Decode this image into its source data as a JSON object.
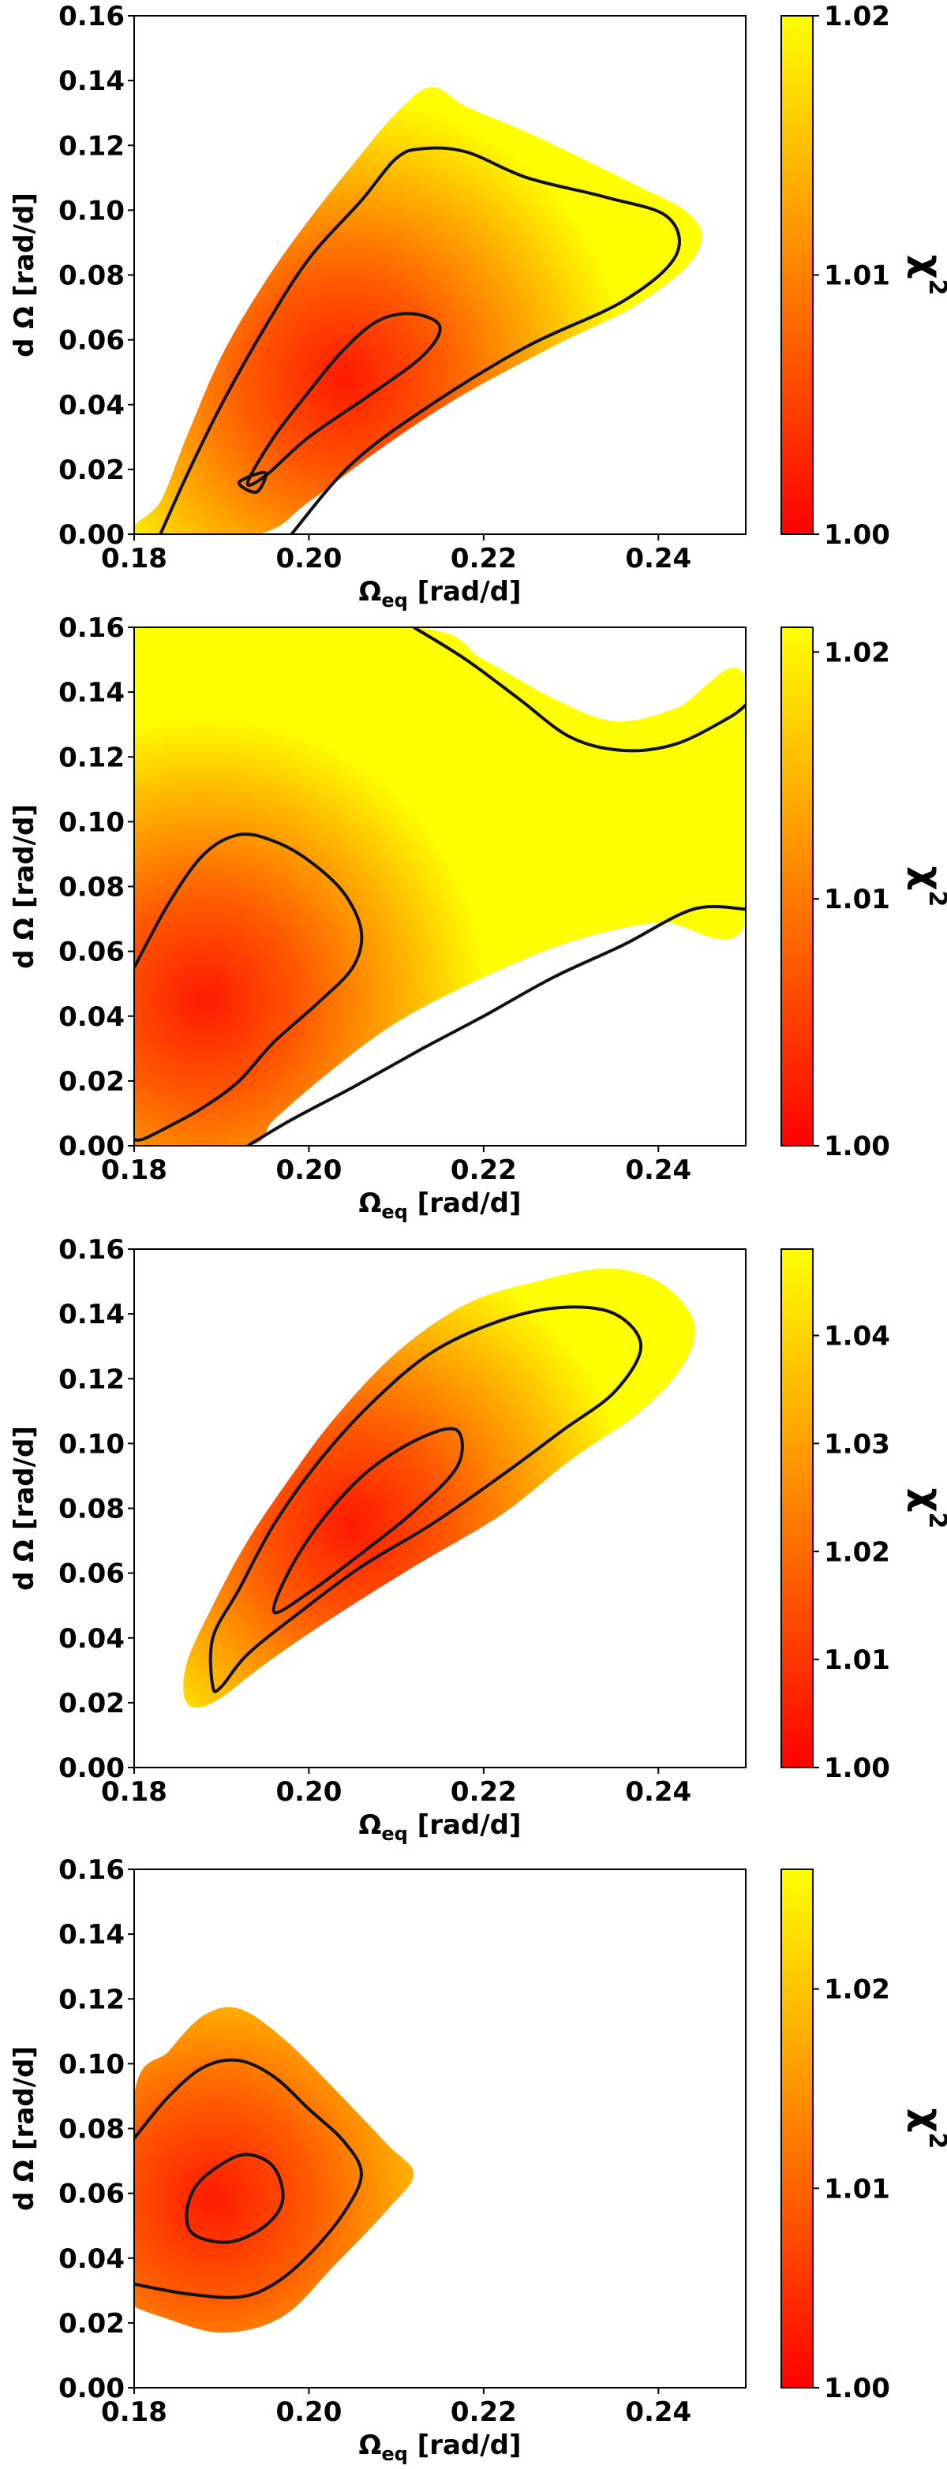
{
  "chart_data": [
    {
      "type": "contour",
      "title": "",
      "xlabel_main": "Ω",
      "xlabel_sub": "eq",
      "xlabel_unit": " [rad/d]",
      "ylabel": "d Ω  [rad/d]",
      "xlim": [
        0.18,
        0.25
      ],
      "ylim": [
        0.0,
        0.16
      ],
      "xticks": [
        "0.18",
        "0.20",
        "0.22",
        "0.24"
      ],
      "xtick_values": [
        0.18,
        0.2,
        0.22,
        0.24
      ],
      "yticks": [
        "0.00",
        "0.02",
        "0.04",
        "0.06",
        "0.08",
        "0.10",
        "0.12",
        "0.14",
        "0.16"
      ],
      "ytick_values": [
        0.0,
        0.02,
        0.04,
        0.06,
        0.08,
        0.1,
        0.12,
        0.14,
        0.16
      ],
      "colorbar": {
        "label_main": "χ",
        "label_sup": "2",
        "range": [
          1.0,
          1.02
        ],
        "ticks": [
          "1.00",
          "1.01",
          "1.02"
        ],
        "tick_values": [
          1.0,
          1.01,
          1.02
        ]
      },
      "minimum": [
        0.204,
        0.048
      ],
      "fill_region": [
        [
          0.18,
          0.0
        ],
        [
          0.183,
          0.01
        ],
        [
          0.186,
          0.03
        ],
        [
          0.19,
          0.055
        ],
        [
          0.195,
          0.078
        ],
        [
          0.2,
          0.097
        ],
        [
          0.205,
          0.114
        ],
        [
          0.21,
          0.13
        ],
        [
          0.214,
          0.138
        ],
        [
          0.218,
          0.132
        ],
        [
          0.225,
          0.124
        ],
        [
          0.232,
          0.115
        ],
        [
          0.238,
          0.107
        ],
        [
          0.243,
          0.1
        ],
        [
          0.245,
          0.092
        ],
        [
          0.243,
          0.082
        ],
        [
          0.237,
          0.07
        ],
        [
          0.228,
          0.058
        ],
        [
          0.217,
          0.042
        ],
        [
          0.208,
          0.026
        ],
        [
          0.2,
          0.01
        ],
        [
          0.194,
          0.0
        ]
      ],
      "contours": [
        [
          [
            0.183,
            0.0
          ],
          [
            0.186,
            0.018
          ],
          [
            0.19,
            0.04
          ],
          [
            0.195,
            0.064
          ],
          [
            0.2,
            0.085
          ],
          [
            0.206,
            0.103
          ],
          [
            0.21,
            0.116
          ],
          [
            0.213,
            0.119
          ],
          [
            0.218,
            0.118
          ],
          [
            0.225,
            0.11
          ],
          [
            0.234,
            0.104
          ],
          [
            0.241,
            0.098
          ],
          [
            0.242,
            0.086
          ],
          [
            0.236,
            0.072
          ],
          [
            0.225,
            0.058
          ],
          [
            0.214,
            0.04
          ],
          [
            0.205,
            0.022
          ],
          [
            0.198,
            0.0
          ]
        ],
        [
          [
            0.193,
            0.016
          ],
          [
            0.196,
            0.03
          ],
          [
            0.2,
            0.044
          ],
          [
            0.204,
            0.057
          ],
          [
            0.208,
            0.066
          ],
          [
            0.212,
            0.068
          ],
          [
            0.215,
            0.064
          ],
          [
            0.213,
            0.055
          ],
          [
            0.207,
            0.043
          ],
          [
            0.2,
            0.03
          ],
          [
            0.195,
            0.018
          ],
          [
            0.193,
            0.016
          ]
        ],
        [
          [
            0.192,
            0.016
          ],
          [
            0.194,
            0.013
          ],
          [
            0.195,
            0.019
          ],
          [
            0.192,
            0.016
          ]
        ]
      ]
    },
    {
      "type": "contour",
      "title": "",
      "xlabel_main": "Ω",
      "xlabel_sub": "eq",
      "xlabel_unit": " [rad/d]",
      "ylabel": "d Ω  [rad/d]",
      "xlim": [
        0.18,
        0.25
      ],
      "ylim": [
        0.0,
        0.16
      ],
      "xticks": [
        "0.18",
        "0.20",
        "0.22",
        "0.24"
      ],
      "xtick_values": [
        0.18,
        0.2,
        0.22,
        0.24
      ],
      "yticks": [
        "0.00",
        "0.02",
        "0.04",
        "0.06",
        "0.08",
        "0.10",
        "0.12",
        "0.14",
        "0.16"
      ],
      "ytick_values": [
        0.0,
        0.02,
        0.04,
        0.06,
        0.08,
        0.1,
        0.12,
        0.14,
        0.16
      ],
      "colorbar": {
        "label_main": "χ",
        "label_sup": "2",
        "range": [
          1.0,
          1.021
        ],
        "ticks": [
          "1.00",
          "1.01",
          "1.02"
        ],
        "tick_values": [
          1.0,
          1.01,
          1.02
        ]
      },
      "minimum": [
        0.188,
        0.045
      ],
      "fill_region": [
        [
          0.18,
          0.0
        ],
        [
          0.18,
          0.16
        ],
        [
          0.212,
          0.16
        ],
        [
          0.22,
          0.15
        ],
        [
          0.228,
          0.138
        ],
        [
          0.235,
          0.131
        ],
        [
          0.242,
          0.135
        ],
        [
          0.25,
          0.144
        ],
        [
          0.25,
          0.069
        ],
        [
          0.24,
          0.069
        ],
        [
          0.23,
          0.063
        ],
        [
          0.22,
          0.052
        ],
        [
          0.21,
          0.038
        ],
        [
          0.202,
          0.022
        ],
        [
          0.196,
          0.008
        ],
        [
          0.193,
          0.0
        ]
      ],
      "contours": [
        [
          [
            0.18,
            0.055
          ],
          [
            0.184,
            0.075
          ],
          [
            0.188,
            0.09
          ],
          [
            0.192,
            0.096
          ],
          [
            0.196,
            0.094
          ],
          [
            0.2,
            0.088
          ],
          [
            0.204,
            0.078
          ],
          [
            0.206,
            0.066
          ],
          [
            0.205,
            0.055
          ],
          [
            0.201,
            0.044
          ],
          [
            0.196,
            0.032
          ],
          [
            0.192,
            0.02
          ],
          [
            0.188,
            0.012
          ],
          [
            0.184,
            0.006
          ],
          [
            0.181,
            0.002
          ],
          [
            0.18,
            0.002
          ]
        ],
        [
          [
            0.193,
            0.0
          ],
          [
            0.198,
            0.008
          ],
          [
            0.205,
            0.018
          ],
          [
            0.213,
            0.03
          ],
          [
            0.22,
            0.04
          ],
          [
            0.228,
            0.052
          ],
          [
            0.236,
            0.062
          ],
          [
            0.244,
            0.073
          ],
          [
            0.25,
            0.073
          ]
        ],
        [
          [
            0.212,
            0.16
          ],
          [
            0.218,
            0.15
          ],
          [
            0.224,
            0.138
          ],
          [
            0.23,
            0.126
          ],
          [
            0.236,
            0.122
          ],
          [
            0.242,
            0.124
          ],
          [
            0.248,
            0.132
          ],
          [
            0.25,
            0.136
          ]
        ]
      ]
    },
    {
      "type": "contour",
      "title": "",
      "xlabel_main": "Ω",
      "xlabel_sub": "eq",
      "xlabel_unit": " [rad/d]",
      "ylabel": "d Ω  [rad/d]",
      "xlim": [
        0.18,
        0.25
      ],
      "ylim": [
        0.0,
        0.16
      ],
      "xticks": [
        "0.18",
        "0.20",
        "0.22",
        "0.24"
      ],
      "xtick_values": [
        0.18,
        0.2,
        0.22,
        0.24
      ],
      "yticks": [
        "0.00",
        "0.02",
        "0.04",
        "0.06",
        "0.08",
        "0.10",
        "0.12",
        "0.14",
        "0.16"
      ],
      "ytick_values": [
        0.0,
        0.02,
        0.04,
        0.06,
        0.08,
        0.1,
        0.12,
        0.14,
        0.16
      ],
      "colorbar": {
        "label_main": "χ",
        "label_sup": "2",
        "range": [
          1.0,
          1.048
        ],
        "ticks": [
          "1.00",
          "1.01",
          "1.02",
          "1.03",
          "1.04"
        ],
        "tick_values": [
          1.0,
          1.01,
          1.02,
          1.03,
          1.04
        ]
      },
      "minimum": [
        0.205,
        0.075
      ],
      "fill_region": [
        [
          0.186,
          0.02
        ],
        [
          0.186,
          0.032
        ],
        [
          0.189,
          0.05
        ],
        [
          0.193,
          0.07
        ],
        [
          0.198,
          0.09
        ],
        [
          0.203,
          0.108
        ],
        [
          0.21,
          0.128
        ],
        [
          0.218,
          0.143
        ],
        [
          0.226,
          0.15
        ],
        [
          0.234,
          0.154
        ],
        [
          0.24,
          0.15
        ],
        [
          0.244,
          0.138
        ],
        [
          0.243,
          0.125
        ],
        [
          0.238,
          0.11
        ],
        [
          0.23,
          0.095
        ],
        [
          0.222,
          0.078
        ],
        [
          0.212,
          0.062
        ],
        [
          0.202,
          0.045
        ],
        [
          0.195,
          0.032
        ],
        [
          0.189,
          0.02
        ]
      ],
      "contours": [
        [
          [
            0.189,
            0.025
          ],
          [
            0.189,
            0.04
          ],
          [
            0.192,
            0.055
          ],
          [
            0.196,
            0.075
          ],
          [
            0.201,
            0.094
          ],
          [
            0.207,
            0.112
          ],
          [
            0.214,
            0.128
          ],
          [
            0.222,
            0.138
          ],
          [
            0.229,
            0.142
          ],
          [
            0.235,
            0.14
          ],
          [
            0.238,
            0.13
          ],
          [
            0.235,
            0.116
          ],
          [
            0.229,
            0.104
          ],
          [
            0.222,
            0.09
          ],
          [
            0.214,
            0.075
          ],
          [
            0.206,
            0.062
          ],
          [
            0.199,
            0.048
          ],
          [
            0.193,
            0.035
          ],
          [
            0.19,
            0.025
          ],
          [
            0.189,
            0.025
          ]
        ],
        [
          [
            0.196,
            0.048
          ],
          [
            0.198,
            0.062
          ],
          [
            0.202,
            0.078
          ],
          [
            0.207,
            0.092
          ],
          [
            0.213,
            0.102
          ],
          [
            0.217,
            0.104
          ],
          [
            0.217,
            0.093
          ],
          [
            0.212,
            0.079
          ],
          [
            0.205,
            0.064
          ],
          [
            0.2,
            0.054
          ],
          [
            0.196,
            0.048
          ]
        ]
      ]
    },
    {
      "type": "contour",
      "title": "",
      "xlabel_main": "Ω",
      "xlabel_sub": "eq",
      "xlabel_unit": " [rad/d]",
      "ylabel": "d Ω  [rad/d]",
      "xlim": [
        0.18,
        0.25
      ],
      "ylim": [
        0.0,
        0.16
      ],
      "xticks": [
        "0.18",
        "0.20",
        "0.22",
        "0.24"
      ],
      "xtick_values": [
        0.18,
        0.2,
        0.22,
        0.24
      ],
      "yticks": [
        "0.00",
        "0.02",
        "0.04",
        "0.06",
        "0.08",
        "0.10",
        "0.12",
        "0.14",
        "0.16"
      ],
      "ytick_values": [
        0.0,
        0.02,
        0.04,
        0.06,
        0.08,
        0.1,
        0.12,
        0.14,
        0.16
      ],
      "colorbar": {
        "label_main": "χ",
        "label_sup": "2",
        "range": [
          1.0,
          1.026
        ],
        "ticks": [
          "1.00",
          "1.01",
          "1.02"
        ],
        "tick_values": [
          1.0,
          1.01,
          1.02
        ]
      },
      "minimum": [
        0.189,
        0.058
      ],
      "fill_region": [
        [
          0.18,
          0.025
        ],
        [
          0.18,
          0.09
        ],
        [
          0.184,
          0.104
        ],
        [
          0.188,
          0.115
        ],
        [
          0.192,
          0.117
        ],
        [
          0.197,
          0.108
        ],
        [
          0.203,
          0.092
        ],
        [
          0.209,
          0.075
        ],
        [
          0.212,
          0.066
        ],
        [
          0.209,
          0.055
        ],
        [
          0.203,
          0.038
        ],
        [
          0.197,
          0.022
        ],
        [
          0.19,
          0.017
        ],
        [
          0.183,
          0.022
        ],
        [
          0.18,
          0.025
        ]
      ],
      "contours": [
        [
          [
            0.18,
            0.077
          ],
          [
            0.184,
            0.09
          ],
          [
            0.188,
            0.099
          ],
          [
            0.192,
            0.101
          ],
          [
            0.196,
            0.096
          ],
          [
            0.2,
            0.086
          ],
          [
            0.204,
            0.076
          ],
          [
            0.206,
            0.066
          ],
          [
            0.204,
            0.054
          ],
          [
            0.2,
            0.041
          ],
          [
            0.196,
            0.032
          ],
          [
            0.192,
            0.028
          ],
          [
            0.186,
            0.029
          ],
          [
            0.18,
            0.032
          ]
        ],
        [
          [
            0.186,
            0.053
          ],
          [
            0.187,
            0.062
          ],
          [
            0.19,
            0.069
          ],
          [
            0.193,
            0.072
          ],
          [
            0.196,
            0.068
          ],
          [
            0.197,
            0.058
          ],
          [
            0.195,
            0.05
          ],
          [
            0.191,
            0.045
          ],
          [
            0.187,
            0.047
          ],
          [
            0.186,
            0.053
          ]
        ]
      ]
    }
  ]
}
